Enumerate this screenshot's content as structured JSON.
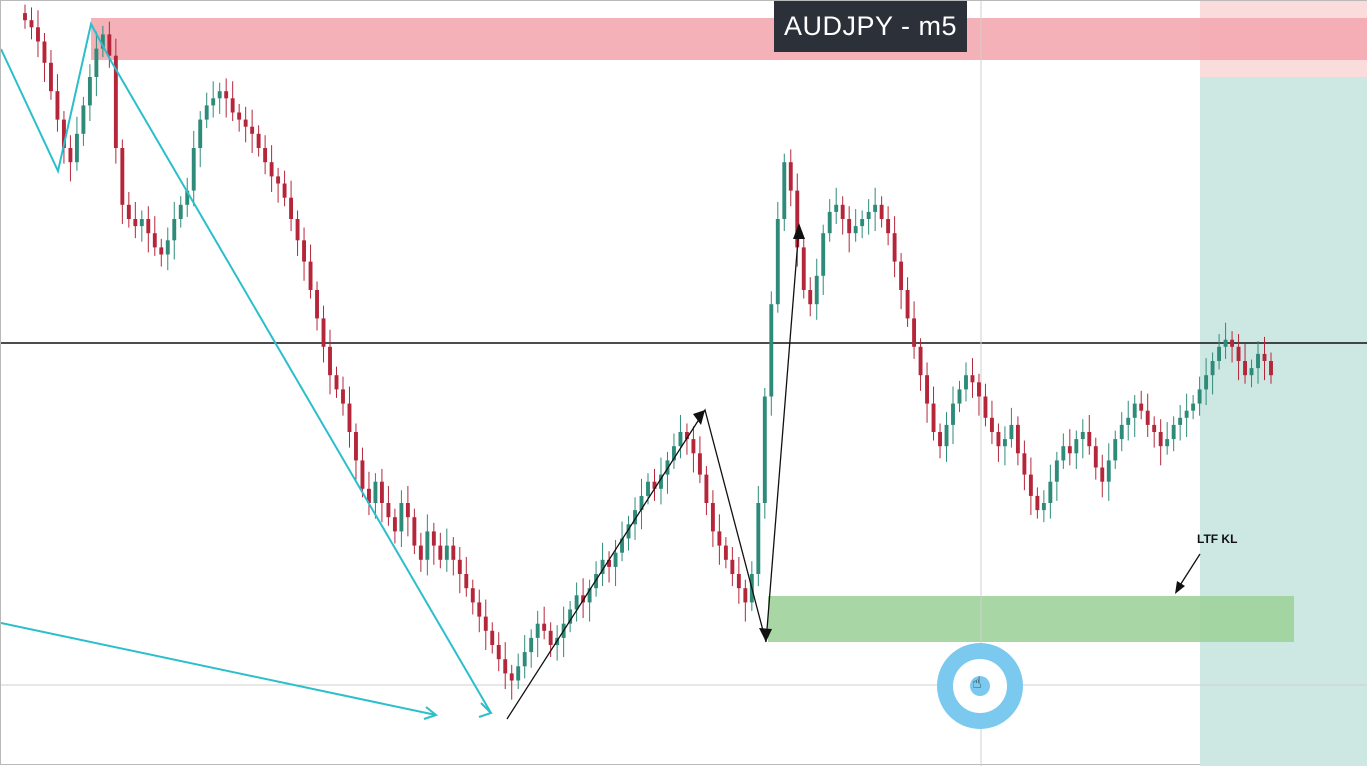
{
  "window": {
    "title": "AUDJPY - m5"
  },
  "colors": {
    "bullish_candle": "#2e8b7a",
    "bearish_candle": "#b5263b",
    "supply_zone": "#f4a9b0",
    "demand_zone": "#9fd39b",
    "target_zone": "#cde8e3",
    "stop_zone": "#f6c9cc",
    "swing_line_teal": "#2bbfcb",
    "swing_line_black": "#111111",
    "cursor_ring": "#7cc9ef"
  },
  "annotations": {
    "ltf_label": "LTF KL"
  },
  "cursor": {
    "icon": "hand-pointer-icon"
  },
  "chart_data": {
    "type": "candlestick",
    "title": "AUDJPY - m5",
    "xlabel": "",
    "ylabel": "",
    "grid": false,
    "ylim": [
      0,
      100
    ],
    "closes": [
      98,
      97,
      95,
      92,
      88,
      84,
      80,
      78,
      82,
      86,
      90,
      94,
      96,
      93,
      80,
      72,
      70,
      69,
      70,
      68,
      66,
      65,
      67,
      70,
      72,
      74,
      80,
      84,
      86,
      87,
      88,
      87,
      85,
      84,
      83,
      82,
      80,
      78,
      76,
      75,
      73,
      70,
      67,
      64,
      60,
      56,
      52,
      48,
      46,
      44,
      40,
      36,
      32,
      30,
      33,
      30,
      28,
      26,
      30,
      28,
      24,
      22,
      26,
      24,
      22,
      24,
      22,
      20,
      18,
      16,
      14,
      12,
      10,
      8,
      6,
      5,
      7,
      9,
      11,
      13,
      12,
      10,
      11,
      13,
      15,
      17,
      16,
      18,
      20,
      22,
      21,
      23,
      25,
      27,
      29,
      31,
      33,
      32,
      34,
      36,
      38,
      40,
      39,
      37,
      34,
      30,
      26,
      24,
      22,
      20,
      18,
      16,
      20,
      30,
      45,
      58,
      70,
      78,
      74,
      66,
      60,
      58,
      62,
      68,
      71,
      72,
      70,
      68,
      69,
      70,
      71,
      72,
      70,
      68,
      64,
      60,
      56,
      52,
      48,
      44,
      40,
      38,
      41,
      44,
      46,
      48,
      47,
      45,
      42,
      40,
      38,
      39,
      41,
      37,
      34,
      31,
      29,
      30,
      33,
      36,
      38,
      37,
      39,
      40,
      38,
      35,
      33,
      36,
      39,
      41,
      42,
      44,
      43,
      41,
      40,
      38,
      39,
      41,
      42,
      43,
      44,
      46,
      48,
      50,
      52,
      53,
      52,
      50,
      48,
      49,
      51,
      50,
      48
    ]
  }
}
